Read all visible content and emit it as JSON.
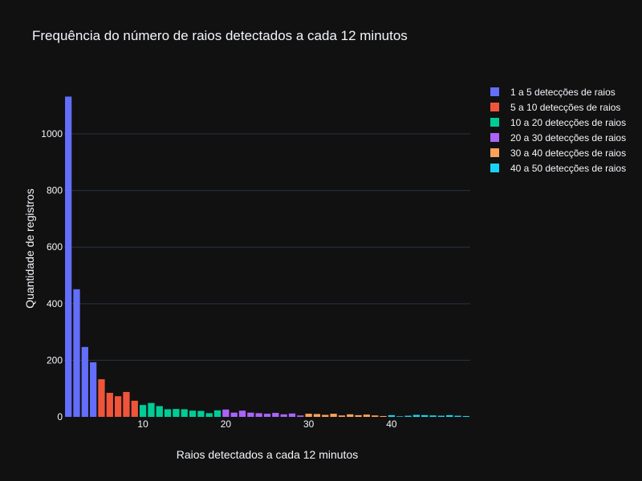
{
  "chart_data": {
    "type": "bar",
    "title": "Frequência do número de raios detectados a cada 12 minutos",
    "xlabel": "Raios detectados a cada 12 minutos",
    "ylabel": "Quantidade de registros",
    "xlim": [
      0.5,
      49.5
    ],
    "ylim": [
      0,
      1190
    ],
    "x_ticks": [
      10,
      20,
      30,
      40
    ],
    "y_ticks": [
      0,
      200,
      400,
      600,
      800,
      1000
    ],
    "grid": true,
    "legend_position": "right",
    "series": [
      {
        "name": "1 a 5 detecções de raios",
        "color": "#636efa",
        "x": [
          1,
          2,
          3,
          4
        ],
        "values": [
          1132,
          451,
          247,
          193
        ]
      },
      {
        "name": "5 a 10 detecções de raios",
        "color": "#ef553b",
        "x": [
          5,
          6,
          7,
          8,
          9
        ],
        "values": [
          133,
          85,
          73,
          88,
          57
        ]
      },
      {
        "name": "10 a 20 detecções de raios",
        "color": "#00cc96",
        "x": [
          10,
          11,
          12,
          13,
          14,
          15,
          16,
          17,
          18,
          19
        ],
        "values": [
          42,
          49,
          38,
          27,
          28,
          27,
          22,
          21,
          13,
          23
        ]
      },
      {
        "name": "20 a 30 detecções de raios",
        "color": "#ab63fa",
        "x": [
          20,
          21,
          22,
          23,
          24,
          25,
          26,
          27,
          28,
          29
        ],
        "values": [
          26,
          15,
          22,
          15,
          13,
          11,
          14,
          9,
          12,
          5
        ]
      },
      {
        "name": "30 a 40 detecções de raios",
        "color": "#ffa15a",
        "x": [
          30,
          31,
          32,
          33,
          34,
          35,
          36,
          37,
          38,
          39
        ],
        "values": [
          11,
          10,
          7,
          11,
          5,
          9,
          6,
          8,
          5,
          3
        ]
      },
      {
        "name": "40 a 50 detecções de raios",
        "color": "#19d3f3",
        "x": [
          40,
          41,
          42,
          43,
          44,
          45,
          46,
          47,
          48,
          49
        ],
        "values": [
          6,
          2,
          4,
          7,
          6,
          5,
          4,
          6,
          4,
          3
        ]
      }
    ]
  }
}
